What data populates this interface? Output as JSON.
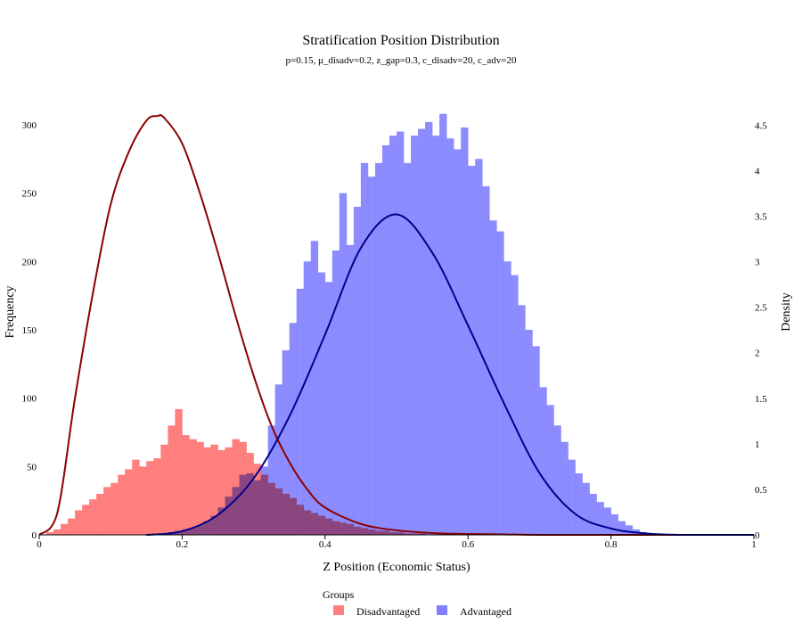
{
  "chart_data": {
    "type": "histogram",
    "title": "Stratification Position Distribution",
    "subtitle": "p=0.15, μ_disadv=0.2, z_gap=0.3, c_disadv=20, c_adv=20",
    "xlabel": "Z Position (Economic Status)",
    "ylabel": "Frequency",
    "y2label": "Density",
    "xlim": [
      0,
      1
    ],
    "ylim": [
      0,
      313
    ],
    "y2lim": [
      0,
      4.7
    ],
    "x_ticks": [
      "0",
      "0.2",
      "0.4",
      "0.6",
      "0.8",
      "1"
    ],
    "y_ticks": [
      "0",
      "50",
      "100",
      "150",
      "200",
      "250",
      "300"
    ],
    "y2_ticks": [
      "0",
      "0.5",
      "1",
      "1.5",
      "2",
      "2.5",
      "3",
      "3.5",
      "4",
      "4.5"
    ],
    "bin_width": 0.01,
    "grid": false,
    "legend": {
      "title": "Groups",
      "position": "bottom-center"
    },
    "series": [
      {
        "name": "Disadvantaged",
        "kind": "histogram",
        "color": "#ff7f7f",
        "bin_start": 0.01,
        "values": [
          2,
          4,
          8,
          12,
          18,
          22,
          26,
          30,
          35,
          38,
          44,
          48,
          55,
          50,
          54,
          56,
          66,
          80,
          92,
          73,
          70,
          68,
          64,
          66,
          62,
          64,
          70,
          68,
          60,
          52,
          44,
          38,
          34,
          30,
          27,
          22,
          18,
          16,
          14,
          12,
          10,
          9,
          8,
          6,
          5,
          4,
          3,
          3,
          2,
          2,
          1,
          1,
          1
        ]
      },
      {
        "name": "Advantaged",
        "kind": "histogram",
        "color": "#7f7fff",
        "bin_start": 0.18,
        "values": [
          2,
          3,
          4,
          5,
          7,
          10,
          14,
          20,
          28,
          35,
          44,
          45,
          40,
          50,
          80,
          110,
          135,
          155,
          180,
          200,
          215,
          192,
          185,
          208,
          250,
          212,
          240,
          272,
          262,
          272,
          285,
          292,
          295,
          272,
          292,
          297,
          302,
          292,
          308,
          290,
          282,
          298,
          270,
          275,
          255,
          230,
          222,
          200,
          190,
          168,
          150,
          138,
          108,
          95,
          80,
          68,
          55,
          45,
          38,
          30,
          24,
          20,
          15,
          10,
          7,
          4,
          2,
          1
        ]
      },
      {
        "name": "Disadvantaged density",
        "kind": "density",
        "color": "#8b0000",
        "x": [
          0,
          0.025,
          0.05,
          0.075,
          0.1,
          0.125,
          0.15,
          0.165,
          0.175,
          0.2,
          0.225,
          0.25,
          0.275,
          0.3,
          0.325,
          0.35,
          0.375,
          0.4,
          0.45,
          0.5,
          0.55,
          0.6,
          0.65,
          0.7,
          0.8,
          1.0
        ],
        "y": [
          0,
          0.23,
          1.5,
          2.65,
          3.63,
          4.2,
          4.55,
          4.6,
          4.58,
          4.3,
          3.75,
          3.1,
          2.4,
          1.75,
          1.2,
          0.8,
          0.5,
          0.3,
          0.12,
          0.05,
          0.02,
          0.01,
          0.005,
          0,
          0,
          0
        ]
      },
      {
        "name": "Advantaged density",
        "kind": "density",
        "color": "#00008b",
        "x": [
          0.15,
          0.2,
          0.25,
          0.3,
          0.35,
          0.4,
          0.45,
          0.5,
          0.55,
          0.6,
          0.65,
          0.7,
          0.75,
          0.8,
          0.85,
          0.9,
          1.0
        ],
        "y": [
          0.0,
          0.04,
          0.22,
          0.62,
          1.3,
          2.2,
          3.15,
          3.52,
          3.1,
          2.3,
          1.45,
          0.68,
          0.23,
          0.07,
          0.015,
          0,
          0
        ]
      }
    ]
  }
}
